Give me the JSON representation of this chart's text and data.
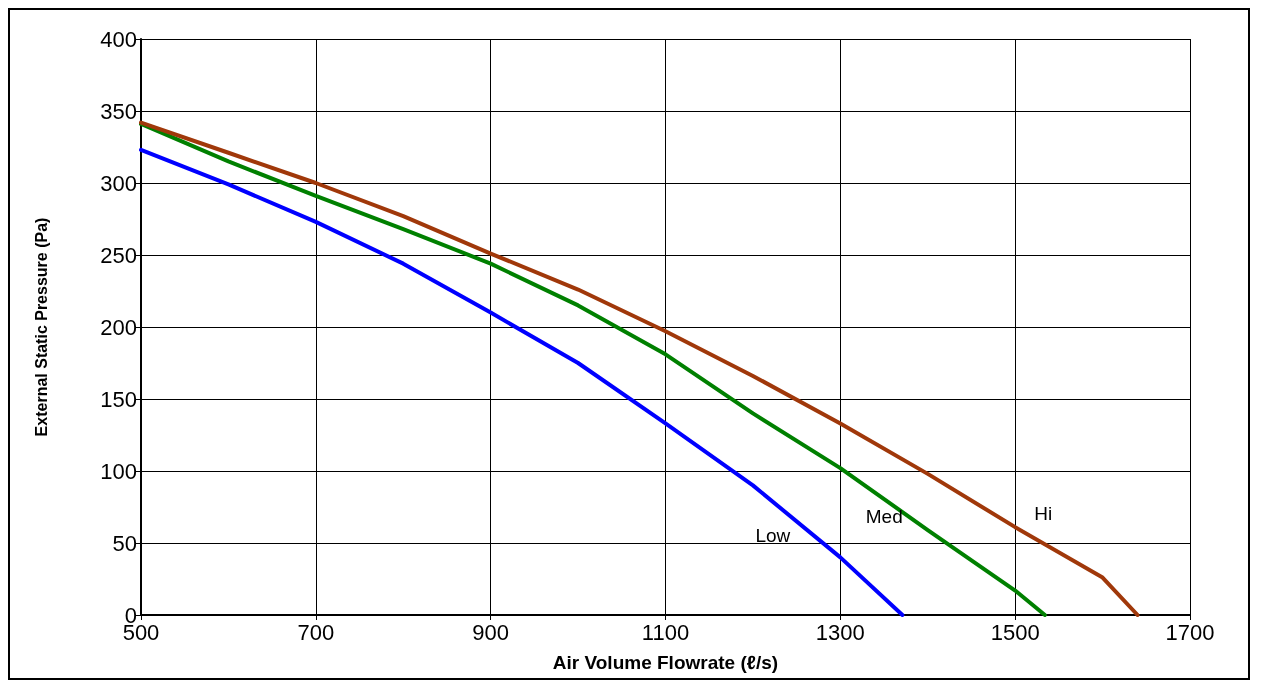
{
  "chart_data": {
    "type": "line",
    "xlabel": "Air Volume Flowrate (ℓ/s)",
    "ylabel": "External Static Pressure (Pa)",
    "xlim": [
      500,
      1700
    ],
    "xticks": [
      500,
      700,
      900,
      1100,
      1300,
      1500,
      1700
    ],
    "ylim": [
      0,
      400
    ],
    "yticks": [
      0,
      50,
      100,
      150,
      200,
      250,
      300,
      350,
      400
    ],
    "grid": true,
    "legend": false,
    "marker": "none",
    "line_style": "solid",
    "series": [
      {
        "name": "Low",
        "color": "#0000ff",
        "x": [
          500,
          600,
          700,
          800,
          900,
          1000,
          1100,
          1200,
          1300,
          1371
        ],
        "values": [
          323,
          299,
          273,
          244,
          210,
          175,
          133,
          90,
          40,
          0
        ]
      },
      {
        "name": "Med",
        "color": "#008000",
        "x": [
          500,
          600,
          700,
          800,
          900,
          1000,
          1100,
          1200,
          1300,
          1400,
          1500,
          1534
        ],
        "values": [
          341,
          315,
          291,
          268,
          244,
          215,
          181,
          140,
          102,
          59,
          17,
          0
        ]
      },
      {
        "name": "Hi",
        "color": "#a0380a",
        "x": [
          500,
          600,
          700,
          800,
          900,
          1000,
          1100,
          1200,
          1300,
          1400,
          1500,
          1600,
          1640
        ],
        "values": [
          342,
          321,
          300,
          277,
          251,
          226,
          197,
          166,
          133,
          98,
          61,
          26,
          0
        ]
      }
    ]
  }
}
